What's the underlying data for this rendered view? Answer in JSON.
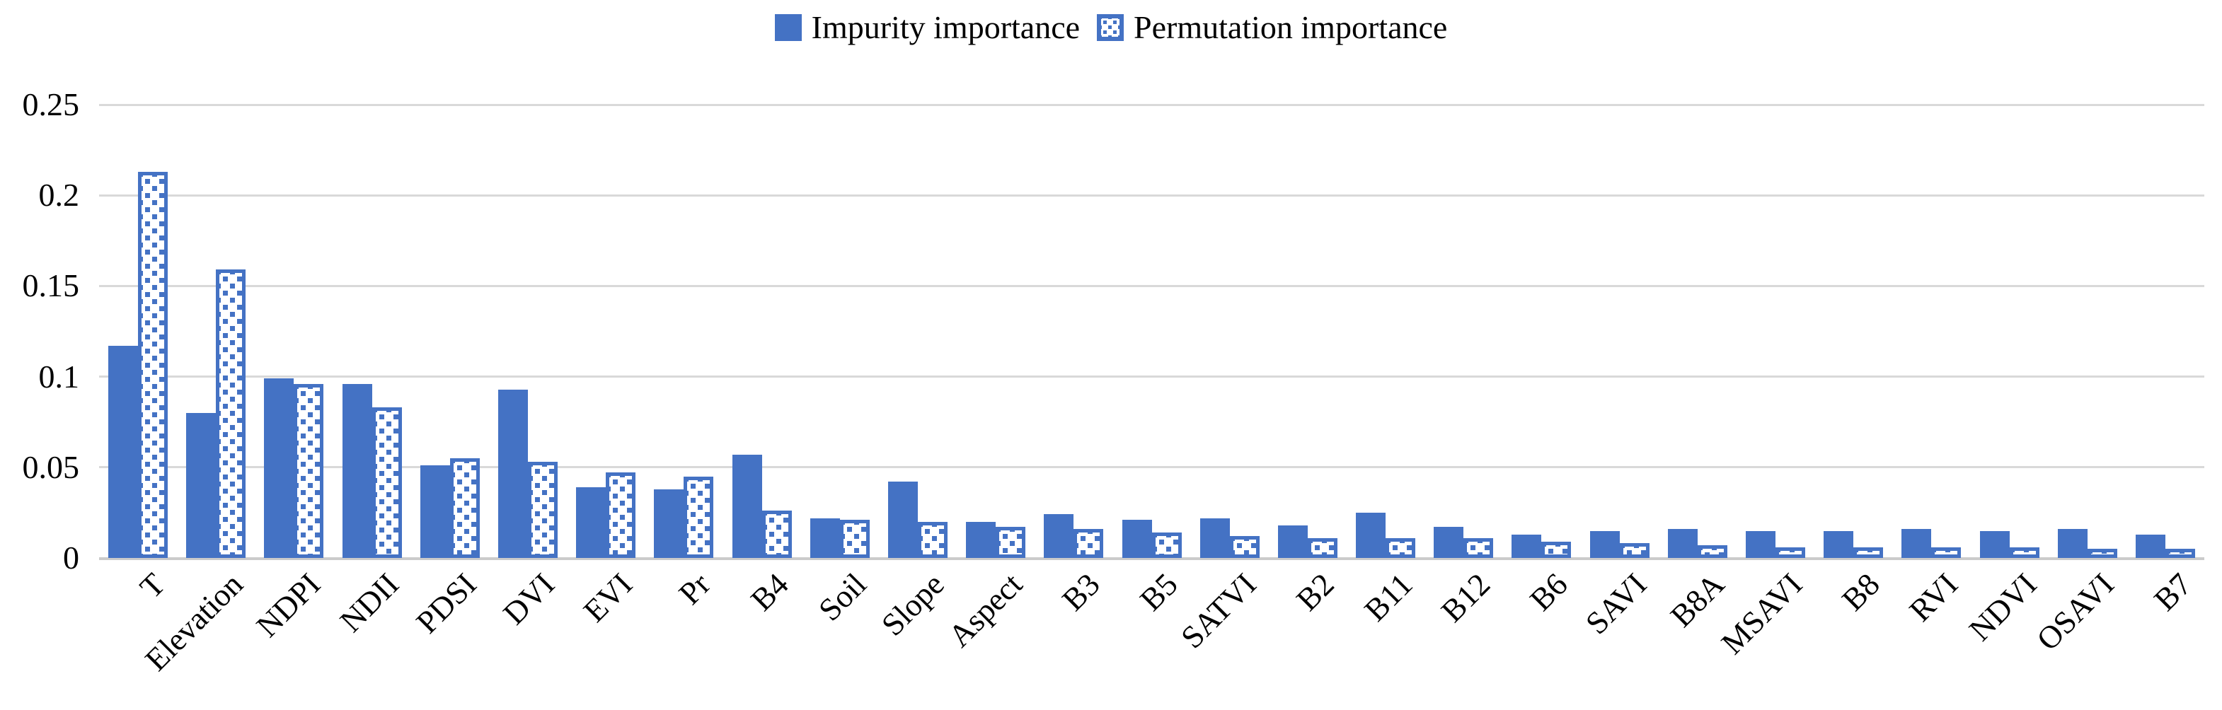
{
  "page": {
    "background": "#FFFFFF",
    "text_color": "#000000"
  },
  "chart_data": {
    "type": "bar",
    "title": "",
    "xlabel": "",
    "ylabel": "",
    "legend_position": "top",
    "grid": "horizontal",
    "gridline_color": "#D9D9D9",
    "bar_color": "#4472C4",
    "x_label_rotation_deg": 45,
    "ylim": [
      0,
      0.25
    ],
    "y_ticks": [
      0.25,
      0.2,
      0.15,
      0.1,
      0.05,
      0
    ],
    "y_tick_labels": [
      "0.25",
      "0.2",
      "0.15",
      "0.1",
      "0.05",
      "0"
    ],
    "categories": [
      "T",
      "Elevation",
      "NDPI",
      "NDII",
      "PDSI",
      "DVI",
      "EVI",
      "Pr",
      "B4",
      "Soil",
      "Slope",
      "Aspect",
      "B3",
      "B5",
      "SATVI",
      "B2",
      "B11",
      "B12",
      "B6",
      "SAVI",
      "B8A",
      "MSAVI",
      "B8",
      "RVI",
      "NDVI",
      "OSAVI",
      "B7"
    ],
    "series": [
      {
        "name": "Impurity importance",
        "style": "solid",
        "color": "#4472C4",
        "values": [
          0.117,
          0.08,
          0.099,
          0.096,
          0.051,
          0.093,
          0.039,
          0.038,
          0.057,
          0.022,
          0.042,
          0.02,
          0.024,
          0.021,
          0.022,
          0.018,
          0.025,
          0.017,
          0.013,
          0.015,
          0.016,
          0.015,
          0.015,
          0.016,
          0.015,
          0.016,
          0.013
        ]
      },
      {
        "name": "Permutation importance",
        "style": "dotted-pattern",
        "color": "#4472C4",
        "values": [
          0.213,
          0.159,
          0.096,
          0.083,
          0.055,
          0.053,
          0.047,
          0.045,
          0.026,
          0.021,
          0.02,
          0.017,
          0.016,
          0.014,
          0.012,
          0.011,
          0.011,
          0.011,
          0.009,
          0.008,
          0.007,
          0.006,
          0.006,
          0.006,
          0.006,
          0.005,
          0.005
        ]
      }
    ]
  }
}
